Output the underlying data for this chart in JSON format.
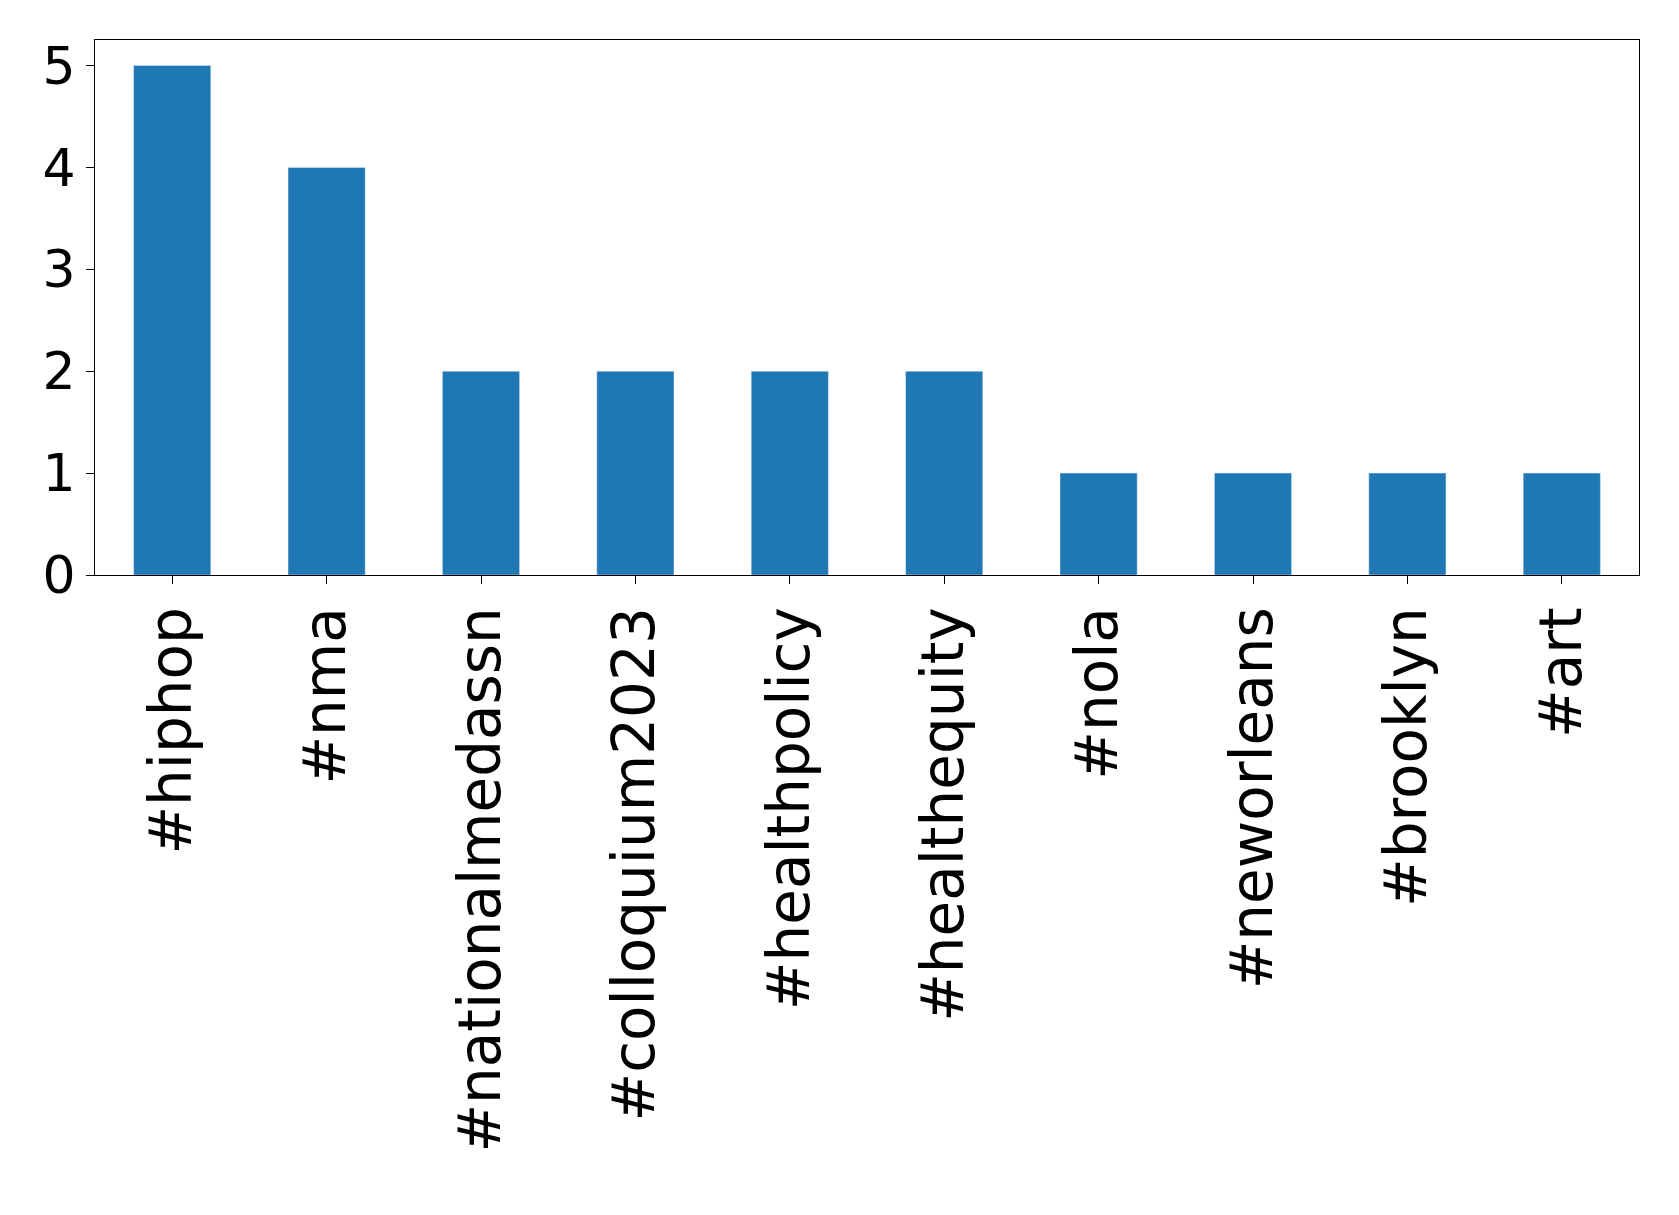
{
  "chart_data": {
    "type": "bar",
    "categories": [
      "#hiphop",
      "#nma",
      "#nationalmedassn",
      "#colloquium2023",
      "#healthpolicy",
      "#healthequity",
      "#nola",
      "#neworleans",
      "#brooklyn",
      "#art"
    ],
    "values": [
      5,
      4,
      2,
      2,
      2,
      2,
      1,
      1,
      1,
      1
    ],
    "color": "#1f77b4",
    "ylim": [
      0,
      5.25
    ],
    "yticks": [
      0,
      1,
      2,
      3,
      4,
      5
    ],
    "legend": false
  }
}
